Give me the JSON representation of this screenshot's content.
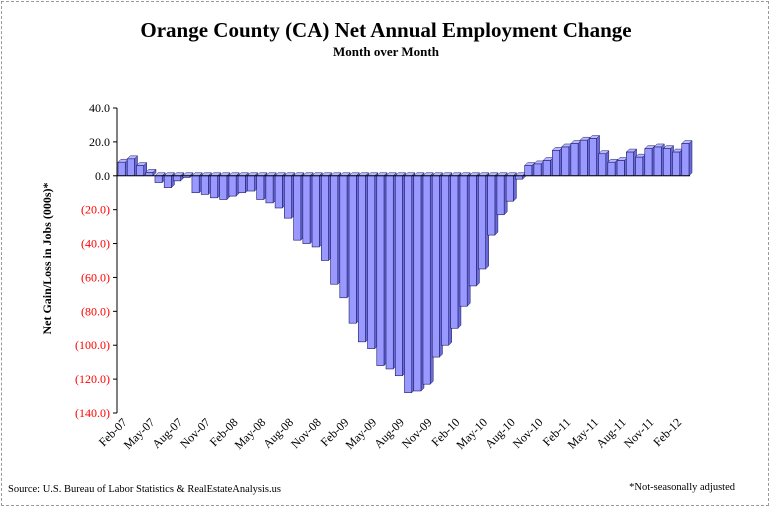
{
  "colors": {
    "bar_fill": "#9999ff",
    "bar_stroke": "#1a1a66",
    "positive_label": "#000000",
    "negative_label": "#ff0000",
    "axis": "#000000"
  },
  "footer": {
    "source": "Source: U.S. Bureau of Labor Statistics & RealEstateAnalysis.us",
    "note": "*Not-seasonally adjusted"
  },
  "chart_data": {
    "type": "bar",
    "title": "Orange County (CA) Net Annual Employment Change",
    "subtitle": "Month over Month",
    "xlabel": "",
    "ylabel": "Net Gain/Loss in Jobs (000s)*",
    "ylim": [
      -140,
      40
    ],
    "yticks": [
      40,
      20,
      0,
      -20,
      -40,
      -60,
      -80,
      -100,
      -120,
      -140
    ],
    "ytick_labels": [
      "40.0",
      "20.0",
      "0.0",
      "(20.0)",
      "(40.0)",
      "(60.0)",
      "(80.0)",
      "(100.0)",
      "(120.0)",
      "(140.0)"
    ],
    "grid": false,
    "legend": "none",
    "categories": [
      "Feb-07",
      "Mar-07",
      "Apr-07",
      "May-07",
      "Jun-07",
      "Jul-07",
      "Aug-07",
      "Sep-07",
      "Oct-07",
      "Nov-07",
      "Dec-07",
      "Jan-08",
      "Feb-08",
      "Mar-08",
      "Apr-08",
      "May-08",
      "Jun-08",
      "Jul-08",
      "Aug-08",
      "Sep-08",
      "Oct-08",
      "Nov-08",
      "Dec-08",
      "Jan-09",
      "Feb-09",
      "Mar-09",
      "Apr-09",
      "May-09",
      "Jun-09",
      "Jul-09",
      "Aug-09",
      "Sep-09",
      "Oct-09",
      "Nov-09",
      "Dec-09",
      "Jan-10",
      "Feb-10",
      "Mar-10",
      "Apr-10",
      "May-10",
      "Jun-10",
      "Jul-10",
      "Aug-10",
      "Sep-10",
      "Oct-10",
      "Nov-10",
      "Dec-10",
      "Jan-11",
      "Feb-11",
      "Mar-11",
      "Apr-11",
      "May-11",
      "Jun-11",
      "Jul-11",
      "Aug-11",
      "Sep-11",
      "Oct-11",
      "Nov-11",
      "Dec-11",
      "Jan-12",
      "Feb-12",
      "Mar-12"
    ],
    "tick_labels": [
      "Feb-07",
      "May-07",
      "Aug-07",
      "Nov-07",
      "Feb-08",
      "May-08",
      "Aug-08",
      "Nov-08",
      "Feb-09",
      "May-09",
      "Aug-09",
      "Nov-09",
      "Feb-10",
      "May-10",
      "Aug-10",
      "Nov-10",
      "Feb-11",
      "May-11",
      "Aug-11",
      "Nov-11",
      "Feb-12"
    ],
    "values": [
      8,
      10,
      6,
      2,
      -4,
      -7,
      -3,
      -1,
      -10,
      -11,
      -13,
      -14,
      -12,
      -10,
      -9,
      -14,
      -16,
      -19,
      -25,
      -38,
      -40,
      -42,
      -50,
      -64,
      -72,
      -87,
      -98,
      -102,
      -112,
      -114,
      -118,
      -128,
      -127,
      -123,
      -107,
      -100,
      -90,
      -77,
      -65,
      -55,
      -35,
      -23,
      -15,
      -2,
      6,
      7,
      9,
      15,
      17,
      19,
      21,
      22,
      13,
      8,
      9,
      14,
      11,
      16,
      17,
      16,
      14,
      19
    ]
  }
}
